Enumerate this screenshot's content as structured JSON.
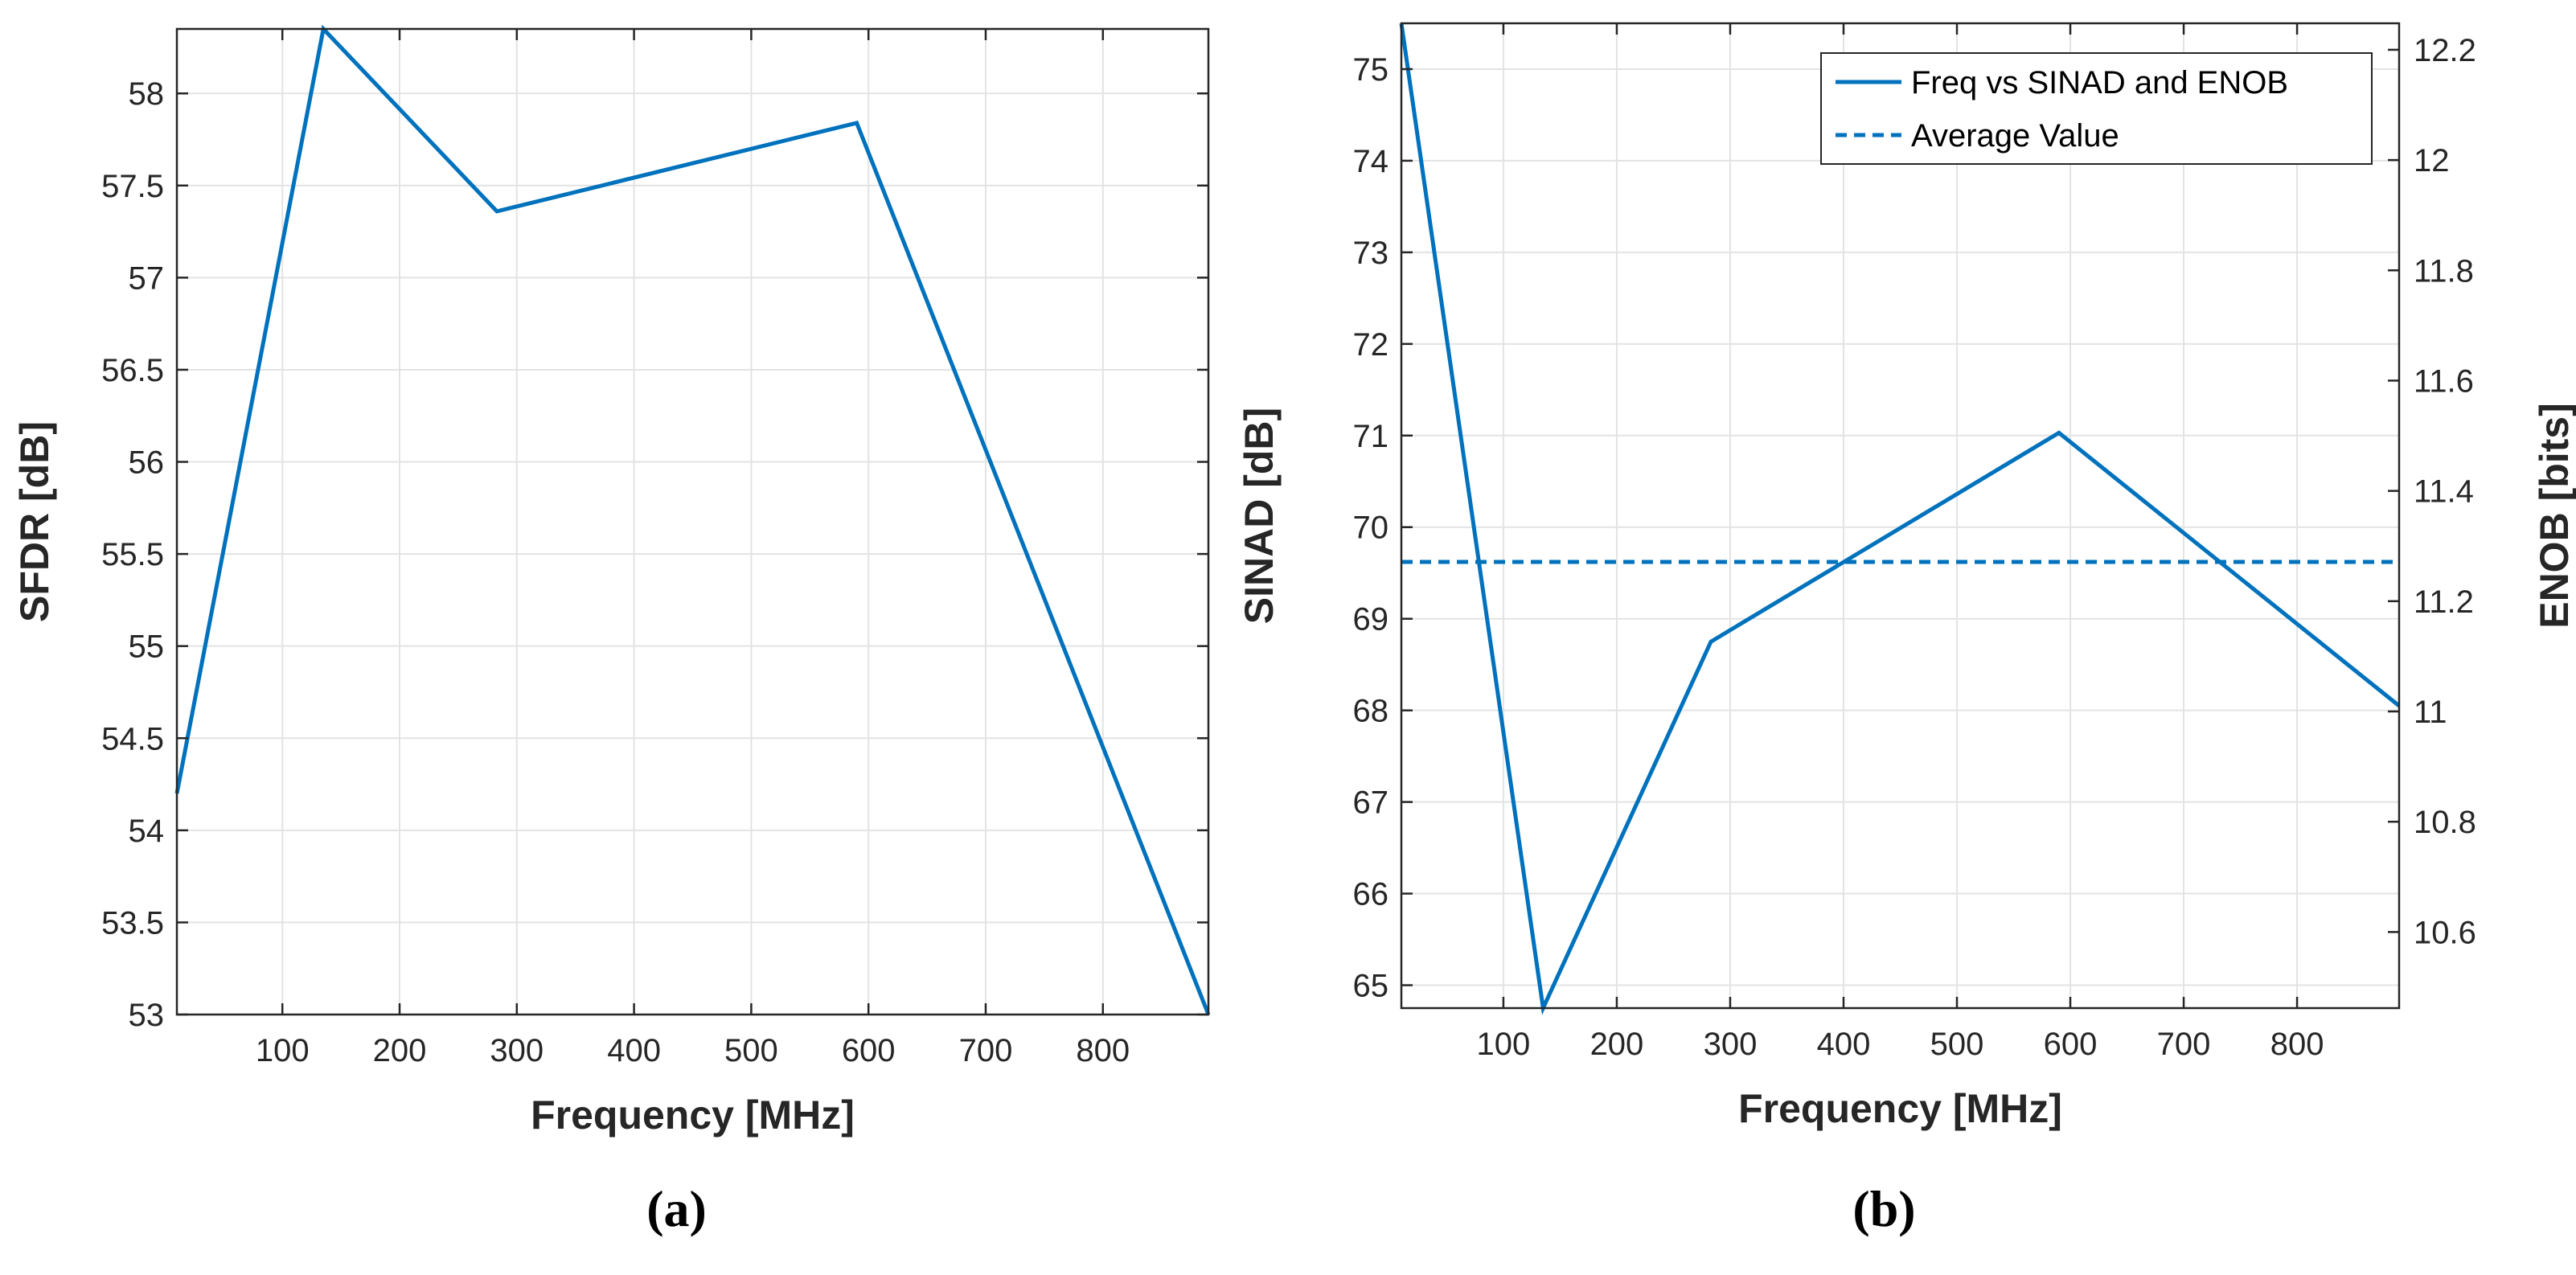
{
  "colors": {
    "series": "#0072BD",
    "grid": "#e3e3e3",
    "axis": "#262626"
  },
  "chart_data": [
    {
      "type": "line",
      "panel_label": "(a)",
      "xlabel": "Frequency [MHz]",
      "ylabel": "SFDR [dB]",
      "xlim": [
        10,
        890
      ],
      "ylim": [
        53,
        58.35
      ],
      "xticks": [
        100,
        200,
        300,
        400,
        500,
        600,
        700,
        800
      ],
      "yticks": [
        53,
        53.5,
        54,
        54.5,
        55,
        55.5,
        56,
        56.5,
        57,
        57.5,
        58
      ],
      "xtick_labels": [
        "100",
        "200",
        "300",
        "400",
        "500",
        "600",
        "700",
        "800"
      ],
      "ytick_labels": [
        "53",
        "53.5",
        "54",
        "54.5",
        "55",
        "55.5",
        "56",
        "56.5",
        "57",
        "57.5",
        "58"
      ],
      "grid": true,
      "series": [
        {
          "name": "SFDR",
          "style": "solid",
          "x": [
            10,
            135,
            283,
            590,
            890
          ],
          "y": [
            54.2,
            58.35,
            57.36,
            57.84,
            53.0
          ]
        }
      ]
    },
    {
      "type": "line",
      "panel_label": "(b)",
      "xlabel": "Frequency [MHz]",
      "ylabel": "SINAD [dB]",
      "ylabel_right": "ENOB [bits]",
      "xlim": [
        10,
        890
      ],
      "ylim": [
        64.75,
        75.5
      ],
      "ylim_right": [
        10.462,
        12.248
      ],
      "xticks": [
        100,
        200,
        300,
        400,
        500,
        600,
        700,
        800
      ],
      "yticks": [
        65,
        66,
        67,
        68,
        69,
        70,
        71,
        72,
        73,
        74,
        75
      ],
      "yticks_right": [
        10.6,
        10.8,
        11,
        11.2,
        11.4,
        11.6,
        11.8,
        12,
        12.2
      ],
      "xtick_labels": [
        "100",
        "200",
        "300",
        "400",
        "500",
        "600",
        "700",
        "800"
      ],
      "ytick_labels": [
        "65",
        "66",
        "67",
        "68",
        "69",
        "70",
        "71",
        "72",
        "73",
        "74",
        "75"
      ],
      "ytick_labels_right": [
        "10.6",
        "10.8",
        "11",
        "11.2",
        "11.4",
        "11.6",
        "11.8",
        "12",
        "12.2"
      ],
      "grid": true,
      "legend_position": "top-right",
      "legend": [
        "Freq vs SINAD and ENOB",
        "Average Value"
      ],
      "series": [
        {
          "name": "Freq vs SINAD and ENOB",
          "style": "solid",
          "x": [
            10,
            135,
            283,
            590,
            890
          ],
          "y": [
            75.5,
            64.75,
            68.75,
            71.03,
            68.05
          ]
        },
        {
          "name": "Average Value",
          "style": "dashed",
          "x": [
            10,
            890
          ],
          "y": [
            69.62,
            69.62
          ]
        }
      ]
    }
  ]
}
